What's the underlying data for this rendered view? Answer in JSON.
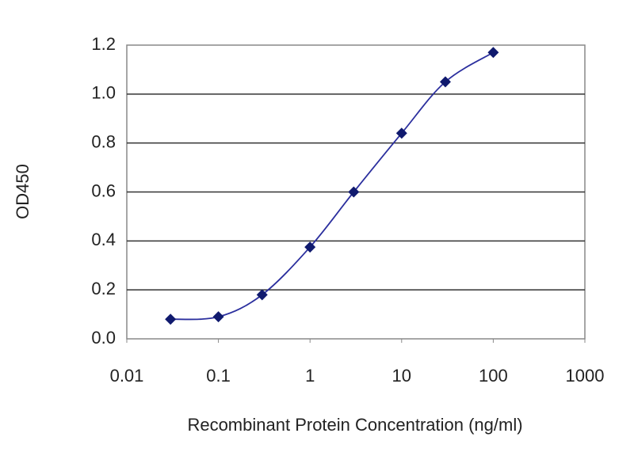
{
  "chart_data": {
    "type": "line",
    "x_label": "Recombinant Protein Concentration (ng/ml)",
    "y_label": "OD450",
    "x": [
      0.03,
      0.1,
      0.3,
      1,
      3,
      10,
      30,
      100
    ],
    "values": [
      0.08,
      0.09,
      0.18,
      0.375,
      0.6,
      0.84,
      1.05,
      1.17
    ],
    "color": "#2b2f9e",
    "marker_color": "#101a6e",
    "xscale": "log",
    "xlim": [
      0.01,
      1000
    ],
    "xticks": [
      0.01,
      0.1,
      1,
      10,
      100,
      1000
    ],
    "ylim": [
      0,
      1.2
    ],
    "yticks": [
      {
        "value": 0,
        "label": "0.0"
      },
      0.2,
      0.4,
      0.6,
      0.8,
      {
        "value": 1,
        "label": "1.0"
      },
      1.2
    ],
    "grid": true
  }
}
